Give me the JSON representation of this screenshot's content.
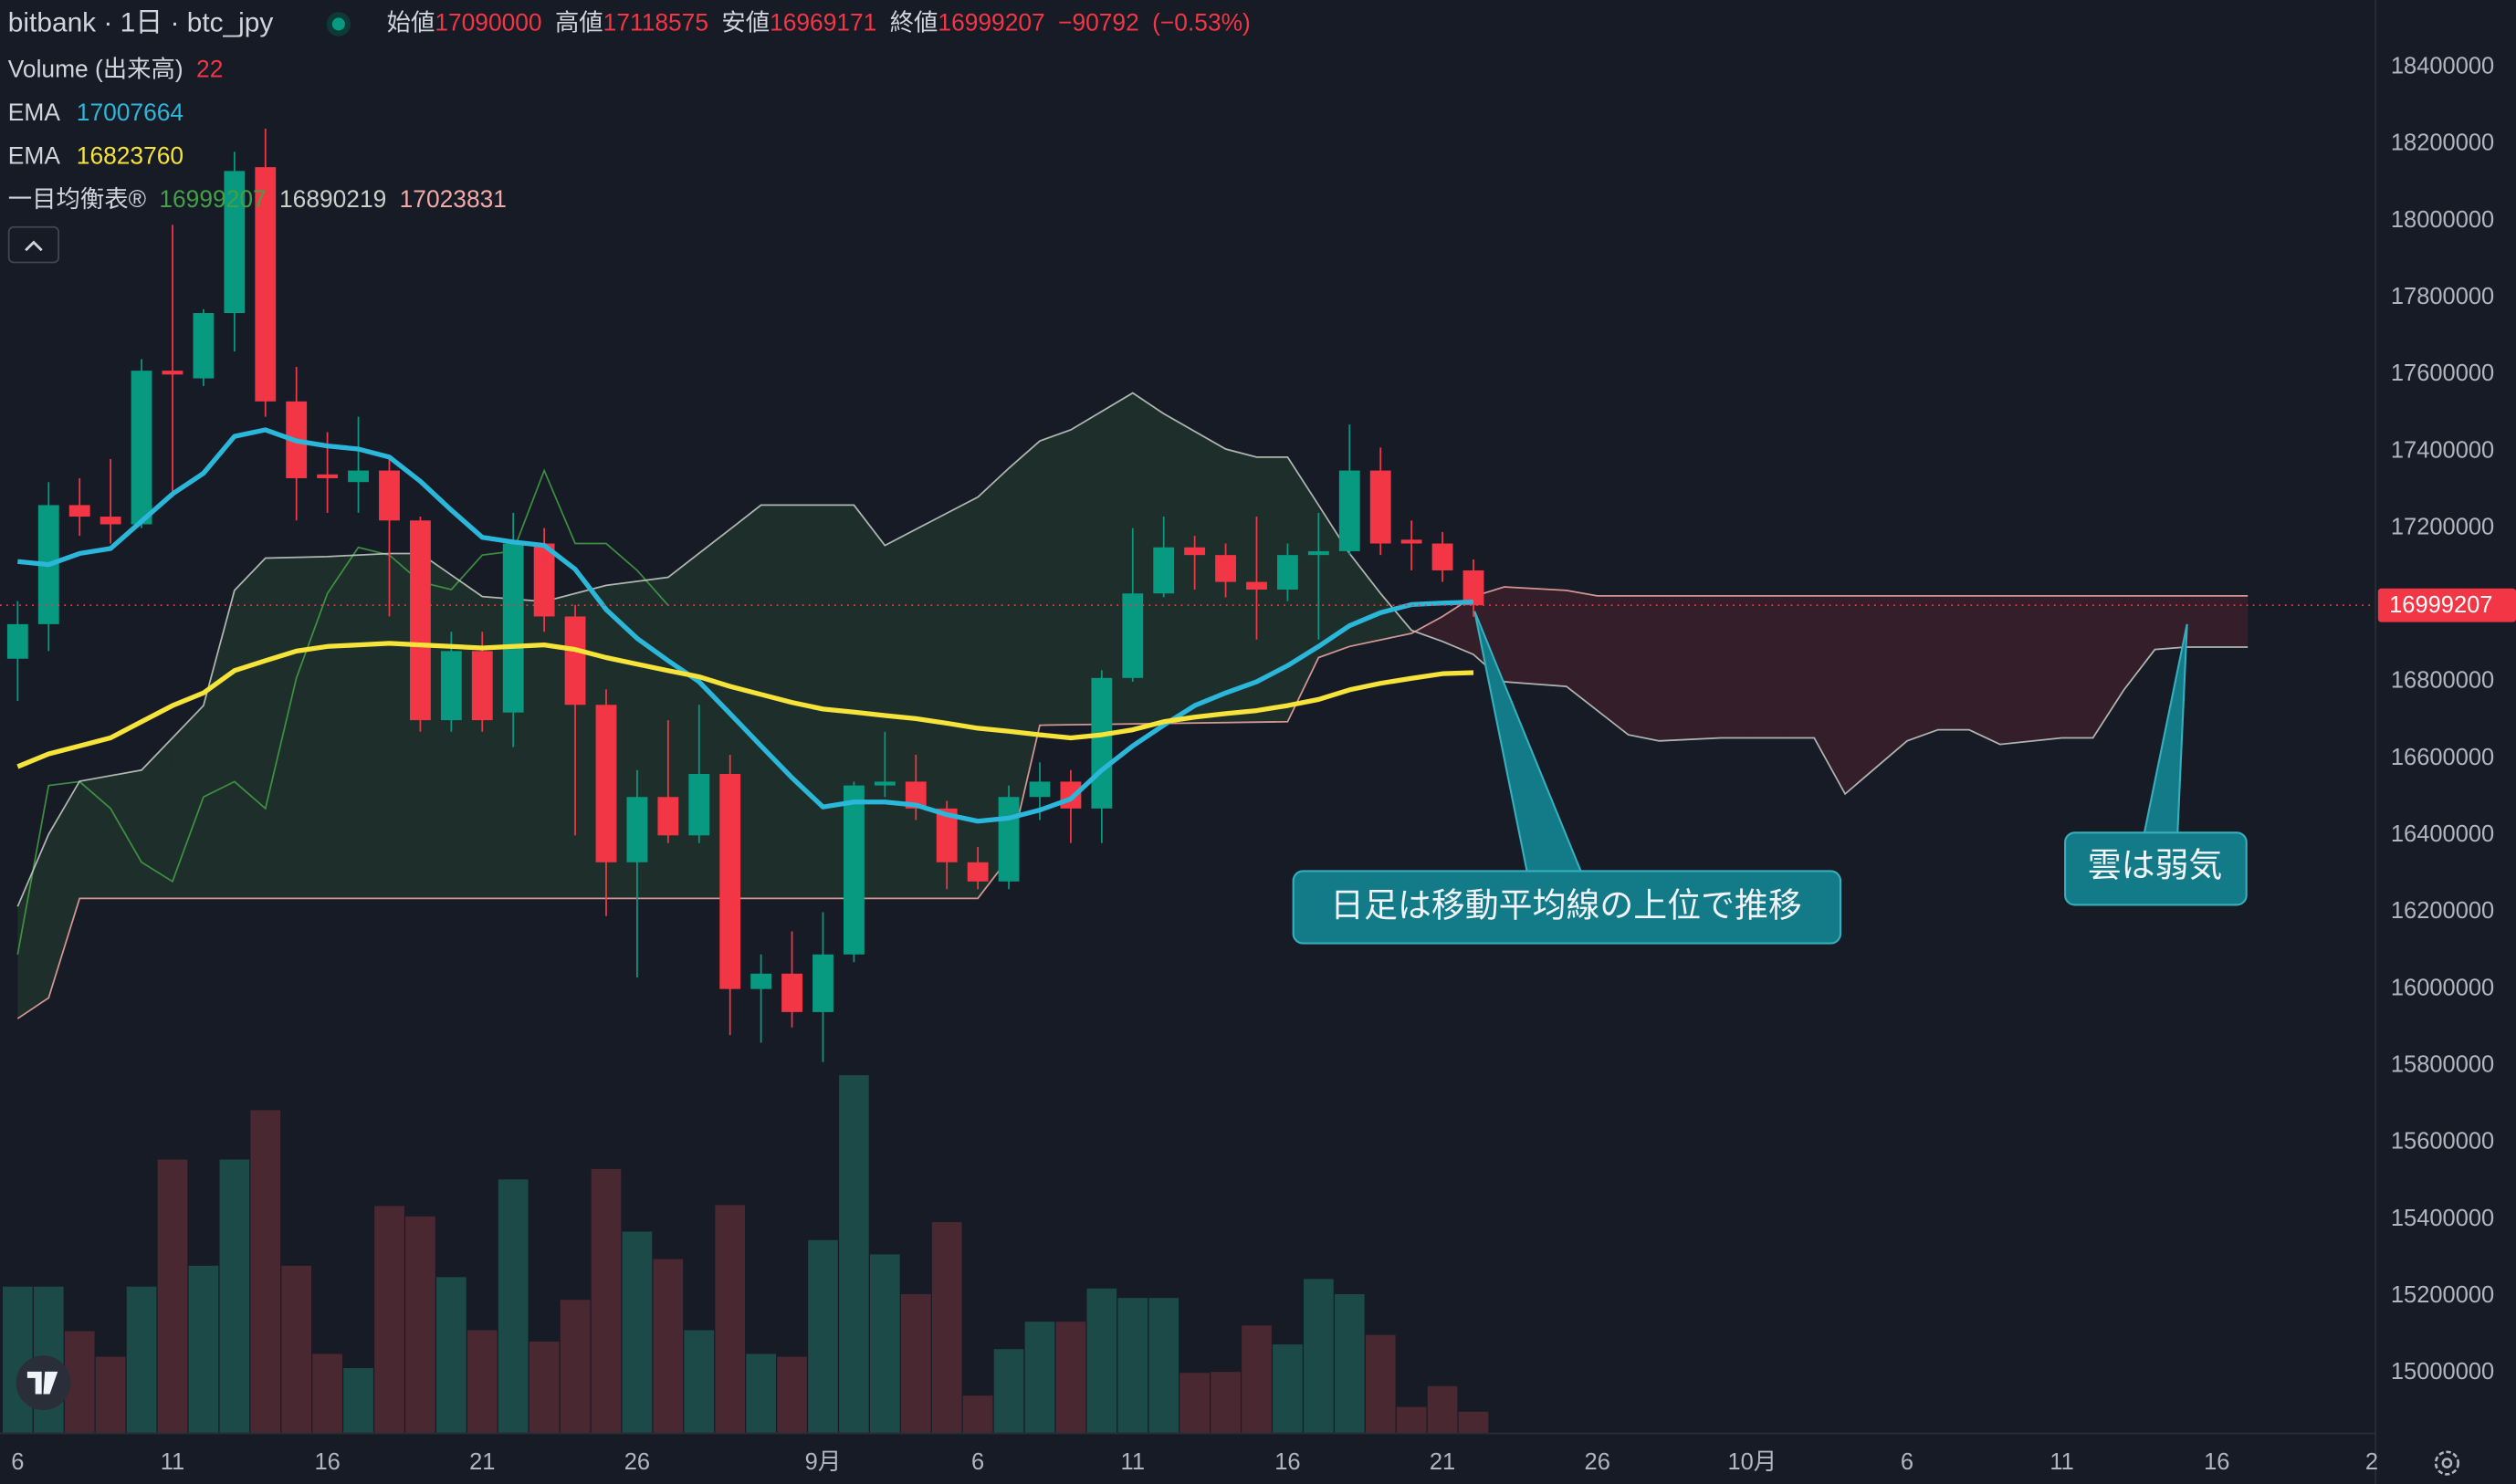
{
  "chart_data": {
    "type": "candlestick",
    "title": "bitbank · 1日 · btc_jpy",
    "ohlc_labels": [
      "始値",
      "高値",
      "安値",
      "終値"
    ],
    "change": {
      "value": -90792,
      "label": "−90792"
    },
    "change_pct": {
      "value": -0.53,
      "label": "(−0.53%)"
    },
    "up_color": "#089981",
    "down_color": "#f23645",
    "grid": false,
    "x": [
      0,
      1,
      2,
      3,
      4,
      5,
      6,
      7,
      8,
      9,
      10,
      11,
      12,
      13,
      14,
      15,
      16,
      17,
      18,
      19,
      20,
      21,
      22,
      23,
      24,
      25,
      26,
      27,
      28,
      29,
      30,
      31,
      32,
      33,
      34,
      35,
      36,
      37,
      38,
      39,
      40,
      41,
      42,
      43,
      44,
      45,
      46,
      47
    ],
    "open": [
      16860000,
      16950000,
      17260000,
      17230000,
      17210000,
      17610000,
      17590000,
      17760000,
      18140000,
      17530000,
      17340000,
      17320000,
      17350000,
      17220000,
      16700000,
      16880000,
      16720000,
      17160000,
      16970000,
      16740000,
      16330000,
      16500000,
      16400000,
      16560000,
      16000000,
      16040000,
      15940000,
      16090000,
      16530000,
      16540000,
      16470000,
      16330000,
      16280000,
      16500000,
      16540000,
      16470000,
      16810000,
      17030000,
      17150000,
      17130000,
      17060000,
      17040000,
      17130000,
      17140000,
      17350000,
      17170000,
      17160000,
      17090000
    ],
    "high": [
      17010000,
      17320000,
      17330000,
      17380000,
      17640000,
      17990000,
      17770000,
      18180000,
      18240000,
      17620000,
      17450000,
      17490000,
      17380000,
      17230000,
      16930000,
      16930000,
      17240000,
      17200000,
      17000000,
      16780000,
      16570000,
      16700000,
      16740000,
      16610000,
      16090000,
      16150000,
      16200000,
      16540000,
      16670000,
      16610000,
      16490000,
      16370000,
      16530000,
      16590000,
      16570000,
      16830000,
      17200000,
      17230000,
      17180000,
      17160000,
      17230000,
      17160000,
      17240000,
      17470000,
      17410000,
      17220000,
      17190000,
      17118575
    ],
    "low": [
      16750000,
      16880000,
      17180000,
      17160000,
      17200000,
      17280000,
      17570000,
      17660000,
      17490000,
      17220000,
      17240000,
      17240000,
      16970000,
      16670000,
      16670000,
      16670000,
      16630000,
      16930000,
      16400000,
      16190000,
      16030000,
      16380000,
      16380000,
      15880000,
      15860000,
      15900000,
      15810000,
      16070000,
      16500000,
      16440000,
      16260000,
      16260000,
      16260000,
      16440000,
      16380000,
      16380000,
      16800000,
      17020000,
      17040000,
      17020000,
      16910000,
      17010000,
      16910000,
      17130000,
      17130000,
      17090000,
      17060000,
      16969171
    ],
    "close": [
      16950000,
      17260000,
      17230000,
      17210000,
      17610000,
      17600000,
      17760000,
      18130000,
      17530000,
      17330000,
      17330000,
      17350000,
      17220000,
      16700000,
      16880000,
      16700000,
      17160000,
      16970000,
      16740000,
      16330000,
      16500000,
      16400000,
      16560000,
      16000000,
      16040000,
      15940000,
      16090000,
      16530000,
      16540000,
      16470000,
      16330000,
      16280000,
      16500000,
      16540000,
      16470000,
      16810000,
      17030000,
      17150000,
      17130000,
      17060000,
      17040000,
      17130000,
      17140000,
      17350000,
      17160000,
      17160000,
      17090000,
      16999207
    ],
    "xlim": [
      -0.57,
      76.1
    ],
    "xticks": [
      {
        "value": 0,
        "label": "6"
      },
      {
        "value": 5,
        "label": "11"
      },
      {
        "value": 10,
        "label": "16"
      },
      {
        "value": 15,
        "label": "21"
      },
      {
        "value": 20,
        "label": "26"
      },
      {
        "value": 26,
        "label": "9月"
      },
      {
        "value": 31,
        "label": "6"
      },
      {
        "value": 36,
        "label": "11"
      },
      {
        "value": 41,
        "label": "16"
      },
      {
        "value": 46,
        "label": "21"
      },
      {
        "value": 51,
        "label": "26"
      },
      {
        "value": 56,
        "label": "10月"
      },
      {
        "value": 61,
        "label": "6"
      },
      {
        "value": 66,
        "label": "11"
      },
      {
        "value": 71,
        "label": "16"
      },
      {
        "value": 76,
        "label": "2"
      }
    ],
    "ylim": [
      14845000,
      18575000
    ],
    "yticks": [
      15000000,
      15200000,
      15400000,
      15600000,
      15800000,
      16000000,
      16200000,
      16400000,
      16600000,
      16800000,
      17000000,
      17200000,
      17400000,
      17600000,
      17800000,
      18000000,
      18200000,
      18400000
    ],
    "y2lim": [
      0,
      1000
    ],
    "volume": {
      "name": "Volume (出来高)",
      "up_color": "#1c4a48",
      "down_color": "#4a2831",
      "axis": "y2",
      "values": [
        154,
        154,
        107,
        80,
        154,
        288,
        176,
        288,
        340,
        176,
        83,
        68,
        239,
        228,
        164,
        108,
        267,
        96,
        140,
        278,
        212,
        183,
        108,
        240,
        83,
        80,
        203,
        377,
        188,
        146,
        222,
        39,
        88,
        117,
        117,
        152,
        142,
        142,
        63,
        64,
        113,
        93,
        162,
        146,
        103,
        27,
        49,
        22
      ]
    },
    "series": [
      {
        "name": "EMA",
        "color": "#2bb7da",
        "values": [
          17113000,
          17105000,
          17134000,
          17147000,
          17218000,
          17289000,
          17343000,
          17439000,
          17456000,
          17427000,
          17414000,
          17406000,
          17385000,
          17322000,
          17247000,
          17176000,
          17164000,
          17155000,
          17093000,
          16988000,
          16913000,
          16855000,
          16800000,
          16717000,
          16633000,
          16550000,
          16474000,
          16487000,
          16487000,
          16479000,
          16454000,
          16437000,
          16445000,
          16466000,
          16495000,
          16570000,
          16633000,
          16687000,
          16738000,
          16771000,
          16800000,
          16842000,
          16892000,
          16946000,
          16980000,
          17001000,
          17005000,
          17007664
        ]
      },
      {
        "name": "EMA",
        "color": "#f7e43a",
        "values": [
          16579000,
          16612000,
          16633000,
          16654000,
          16696000,
          16738000,
          16771000,
          16829000,
          16855000,
          16880000,
          16892000,
          16896000,
          16900000,
          16896000,
          16892000,
          16888000,
          16892000,
          16896000,
          16884000,
          16863000,
          16846000,
          16829000,
          16813000,
          16788000,
          16767000,
          16746000,
          16729000,
          16721000,
          16712000,
          16704000,
          16692000,
          16679000,
          16671000,
          16662000,
          16654000,
          16662000,
          16675000,
          16696000,
          16708000,
          16717000,
          16725000,
          16738000,
          16754000,
          16779000,
          16796000,
          16809000,
          16821000,
          16823760
        ]
      }
    ],
    "ichimoku": {
      "name": "一目均衡表®",
      "cloud_colors": [
        "rgba(76,175,80,0.13)",
        "rgba(242,54,69,0.13)"
      ],
      "lines": [
        {
          "color": "#43a047",
          "x": [
            0,
            1,
            2,
            3,
            4,
            5,
            6,
            7,
            8,
            9,
            10,
            11,
            12,
            13,
            14,
            15,
            16,
            17,
            18,
            19,
            20,
            21
          ],
          "values": [
            16090000,
            16530000,
            16540000,
            16470000,
            16330000,
            16280000,
            16500000,
            16540000,
            16470000,
            16810000,
            17030000,
            17150000,
            17130000,
            17060000,
            17040000,
            17130000,
            17140000,
            17350000,
            17160000,
            17160000,
            17090000,
            16999207
          ]
        },
        {
          "color": "#c8d0c8",
          "x": [
            0,
            1,
            2,
            4,
            6,
            7,
            8,
            10,
            12,
            13,
            15,
            17,
            19,
            21,
            23,
            24,
            27,
            28,
            30,
            31,
            32,
            33,
            34,
            36,
            37,
            39,
            40,
            41,
            42,
            43,
            44,
            45,
            46,
            47,
            48,
            50,
            52,
            53,
            55,
            58,
            59,
            61,
            62,
            63,
            64,
            66,
            67,
            68,
            69,
            70,
            72
          ],
          "values": [
            16215000,
            16403000,
            16541000,
            16570000,
            16738000,
            17038000,
            17122000,
            17126000,
            17134000,
            17134000,
            17022000,
            17009000,
            17051000,
            17072000,
            17197000,
            17260000,
            17260000,
            17155000,
            17239000,
            17281000,
            17356000,
            17427000,
            17456000,
            17552000,
            17498000,
            17406000,
            17385000,
            17385000,
            17260000,
            17134000,
            17030000,
            16934000,
            16905000,
            16871000,
            16800000,
            16788000,
            16662000,
            16646000,
            16654000,
            16654000,
            16508000,
            16646000,
            16675000,
            16675000,
            16637000,
            16654000,
            16654000,
            16779000,
            16884000,
            16890219,
            16890219
          ]
        },
        {
          "color": "#f2aaa6",
          "x": [
            0,
            1,
            2,
            31,
            32,
            33,
            41,
            42,
            43,
            45,
            46,
            47,
            48,
            50,
            51,
            72
          ],
          "values": [
            15923000,
            15977000,
            16236000,
            16236000,
            16341000,
            16687000,
            16696000,
            16863000,
            16892000,
            16926000,
            16970000,
            17022000,
            17047000,
            17038000,
            17023831,
            17023831
          ]
        }
      ]
    },
    "annotations": [
      {
        "text": "日足は移動平均線の上位で推移"
      },
      {
        "text": "雲は弱気"
      }
    ]
  }
}
